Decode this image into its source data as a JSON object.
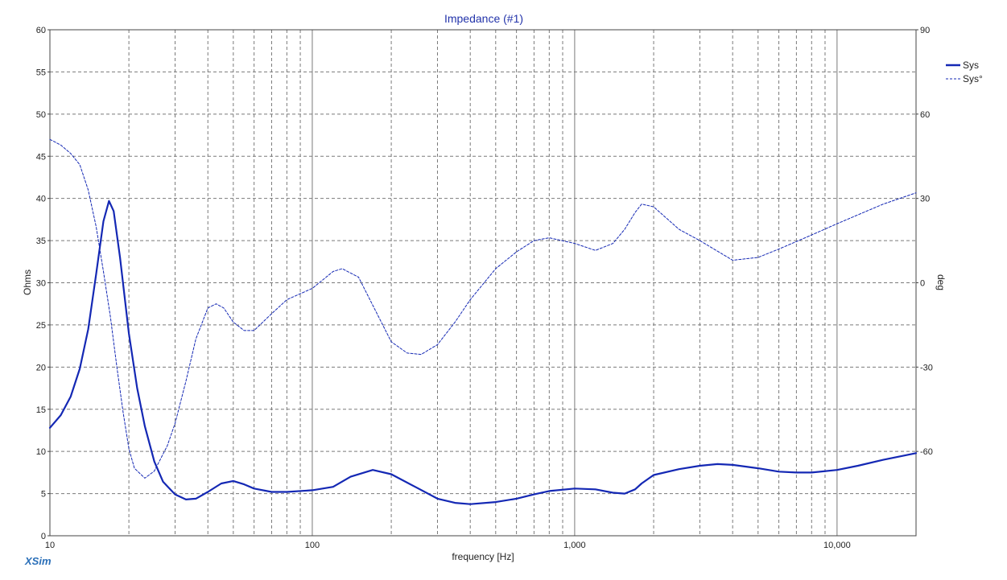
{
  "app_brand": "XSim",
  "chart_data": {
    "type": "line",
    "title": "Impedance (#1)",
    "xlabel": "frequency [Hz]",
    "ylabel_left": "Ohms",
    "ylabel_right": "deg",
    "x_scale": "log",
    "xlim": [
      10,
      20000
    ],
    "ylim_left": [
      0,
      60
    ],
    "ylim_right": [
      -90,
      90
    ],
    "x_tick_labels": [
      {
        "value": 10,
        "label": "10"
      },
      {
        "value": 100,
        "label": "100"
      },
      {
        "value": 1000,
        "label": "1,000"
      },
      {
        "value": 10000,
        "label": "10,000"
      }
    ],
    "y_left_ticks": [
      0,
      5,
      10,
      15,
      20,
      25,
      30,
      35,
      40,
      45,
      50,
      55,
      60
    ],
    "y_right_ticks": [
      -60,
      -30,
      0,
      30,
      60,
      90
    ],
    "grid": true,
    "legend_position": "top-right",
    "colors": {
      "series": "#1428b4",
      "grid": "#7a7a7a",
      "title": "#2233aa",
      "brand": "#2a6fb8"
    },
    "series": [
      {
        "name": "Sys",
        "axis": "left",
        "style": "solid",
        "points": [
          [
            10,
            12.8
          ],
          [
            11,
            14.3
          ],
          [
            12,
            16.5
          ],
          [
            13,
            19.8
          ],
          [
            14,
            24.5
          ],
          [
            15,
            31
          ],
          [
            16,
            37.3
          ],
          [
            16.8,
            39.7
          ],
          [
            17.5,
            38.5
          ],
          [
            18.5,
            33
          ],
          [
            20,
            24
          ],
          [
            21.5,
            17.5
          ],
          [
            23,
            13
          ],
          [
            25,
            8.8
          ],
          [
            27,
            6.4
          ],
          [
            30,
            4.9
          ],
          [
            33,
            4.3
          ],
          [
            36,
            4.4
          ],
          [
            40,
            5.2
          ],
          [
            45,
            6.2
          ],
          [
            50,
            6.5
          ],
          [
            55,
            6.1
          ],
          [
            60,
            5.6
          ],
          [
            70,
            5.2
          ],
          [
            80,
            5.2
          ],
          [
            100,
            5.4
          ],
          [
            120,
            5.8
          ],
          [
            140,
            7
          ],
          [
            170,
            7.8
          ],
          [
            200,
            7.3
          ],
          [
            250,
            5.7
          ],
          [
            300,
            4.4
          ],
          [
            350,
            3.9
          ],
          [
            400,
            3.75
          ],
          [
            500,
            4.0
          ],
          [
            600,
            4.4
          ],
          [
            700,
            4.9
          ],
          [
            800,
            5.3
          ],
          [
            1000,
            5.6
          ],
          [
            1200,
            5.5
          ],
          [
            1400,
            5.1
          ],
          [
            1550,
            5.0
          ],
          [
            1700,
            5.5
          ],
          [
            1800,
            6.2
          ],
          [
            2000,
            7.2
          ],
          [
            2500,
            7.9
          ],
          [
            3000,
            8.3
          ],
          [
            3500,
            8.5
          ],
          [
            4000,
            8.4
          ],
          [
            5000,
            8.0
          ],
          [
            6000,
            7.6
          ],
          [
            7000,
            7.5
          ],
          [
            8000,
            7.5
          ],
          [
            10000,
            7.8
          ],
          [
            12000,
            8.3
          ],
          [
            15000,
            9.0
          ],
          [
            20000,
            9.8
          ]
        ]
      },
      {
        "name": "Sys°",
        "axis": "right",
        "style": "dashed",
        "points": [
          [
            10,
            51
          ],
          [
            11,
            49
          ],
          [
            12,
            46
          ],
          [
            13,
            42
          ],
          [
            14,
            33
          ],
          [
            15,
            20
          ],
          [
            16,
            4
          ],
          [
            17,
            -12
          ],
          [
            18,
            -30
          ],
          [
            19,
            -46
          ],
          [
            20,
            -59
          ],
          [
            21,
            -66
          ],
          [
            23,
            -69.5
          ],
          [
            25,
            -67
          ],
          [
            28,
            -58
          ],
          [
            30,
            -50
          ],
          [
            33,
            -35
          ],
          [
            36,
            -20
          ],
          [
            40,
            -9
          ],
          [
            43,
            -7.5
          ],
          [
            46,
            -9
          ],
          [
            50,
            -14
          ],
          [
            55,
            -17
          ],
          [
            60,
            -17
          ],
          [
            70,
            -11
          ],
          [
            80,
            -6
          ],
          [
            100,
            -2
          ],
          [
            120,
            4
          ],
          [
            130,
            5
          ],
          [
            150,
            2
          ],
          [
            170,
            -8
          ],
          [
            200,
            -21
          ],
          [
            230,
            -25
          ],
          [
            260,
            -25.5
          ],
          [
            300,
            -22
          ],
          [
            350,
            -14
          ],
          [
            400,
            -6
          ],
          [
            500,
            5
          ],
          [
            600,
            11
          ],
          [
            700,
            15
          ],
          [
            800,
            16
          ],
          [
            1000,
            14
          ],
          [
            1200,
            11.5
          ],
          [
            1400,
            14
          ],
          [
            1550,
            19
          ],
          [
            1700,
            25
          ],
          [
            1800,
            28
          ],
          [
            2000,
            27
          ],
          [
            2500,
            19
          ],
          [
            3000,
            15
          ],
          [
            4000,
            8
          ],
          [
            5000,
            9
          ],
          [
            6000,
            12
          ],
          [
            8000,
            17
          ],
          [
            10000,
            21
          ],
          [
            15000,
            28
          ],
          [
            20000,
            32
          ]
        ]
      }
    ]
  }
}
